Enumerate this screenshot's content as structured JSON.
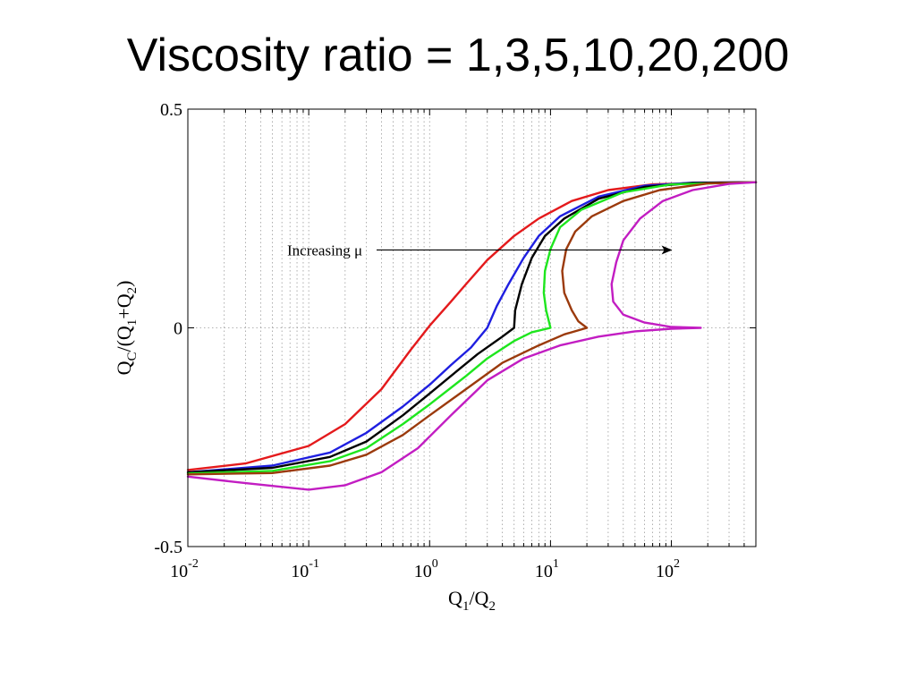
{
  "title": "Viscosity ratio = 1,3,5,10,20,200",
  "chart_data": {
    "type": "line",
    "xscale": "log",
    "xlim": [
      0.01,
      500
    ],
    "ylim": [
      -0.5,
      0.5
    ],
    "grid": {
      "x_minor_dotted": true,
      "y_dotted": true
    },
    "y_ticks": [
      {
        "value": 0.5,
        "label": "0.5"
      },
      {
        "value": 0,
        "label": "0"
      },
      {
        "value": -0.5,
        "label": "-0.5"
      }
    ],
    "x_ticks": [
      {
        "value": 0.01,
        "base": "10",
        "exp": "-2"
      },
      {
        "value": 0.1,
        "base": "10",
        "exp": "-1"
      },
      {
        "value": 1,
        "base": "10",
        "exp": "0"
      },
      {
        "value": 10,
        "base": "10",
        "exp": "1"
      },
      {
        "value": 100,
        "base": "10",
        "exp": "2"
      }
    ],
    "xlabel": {
      "main1": "Q",
      "sub1": "1",
      "main2": "/Q",
      "sub2": "2"
    },
    "ylabel": {
      "p1": "Q",
      "s1": "C",
      "p2": "/(Q",
      "s2": "1",
      "p3": "+Q",
      "s3": "2",
      "p4": ")"
    },
    "annotation": {
      "text": "Increasing μ",
      "y": 0.178,
      "x_end": 100
    },
    "series": [
      {
        "color": "#e41a1c",
        "points": [
          [
            0.01,
            -0.325
          ],
          [
            0.03,
            -0.31
          ],
          [
            0.1,
            -0.27
          ],
          [
            0.2,
            -0.22
          ],
          [
            0.4,
            -0.14
          ],
          [
            0.7,
            -0.05
          ],
          [
            1,
            0.005
          ],
          [
            1.5,
            0.06
          ],
          [
            2,
            0.1
          ],
          [
            3,
            0.155
          ],
          [
            5,
            0.21
          ],
          [
            8,
            0.25
          ],
          [
            15,
            0.29
          ],
          [
            30,
            0.315
          ],
          [
            70,
            0.328
          ],
          [
            200,
            0.332
          ],
          [
            500,
            0.333
          ]
        ]
      },
      {
        "color": "#1f1fe0",
        "points": [
          [
            0.01,
            -0.33
          ],
          [
            0.05,
            -0.315
          ],
          [
            0.15,
            -0.285
          ],
          [
            0.3,
            -0.24
          ],
          [
            0.6,
            -0.18
          ],
          [
            1,
            -0.13
          ],
          [
            1.5,
            -0.085
          ],
          [
            2.2,
            -0.045
          ],
          [
            3,
            0.0
          ],
          [
            3.6,
            0.05
          ],
          [
            4.5,
            0.1
          ],
          [
            6,
            0.16
          ],
          [
            8,
            0.21
          ],
          [
            12,
            0.255
          ],
          [
            25,
            0.3
          ],
          [
            60,
            0.325
          ],
          [
            150,
            0.332
          ],
          [
            500,
            0.333
          ]
        ]
      },
      {
        "color": "#000000",
        "points": [
          [
            0.01,
            -0.33
          ],
          [
            0.05,
            -0.32
          ],
          [
            0.15,
            -0.295
          ],
          [
            0.3,
            -0.26
          ],
          [
            0.6,
            -0.2
          ],
          [
            1,
            -0.15
          ],
          [
            1.5,
            -0.11
          ],
          [
            2.5,
            -0.06
          ],
          [
            4,
            -0.02
          ],
          [
            5,
            0.0
          ],
          [
            5.1,
            0.04
          ],
          [
            5.8,
            0.1
          ],
          [
            7,
            0.16
          ],
          [
            9,
            0.21
          ],
          [
            13,
            0.25
          ],
          [
            25,
            0.295
          ],
          [
            60,
            0.322
          ],
          [
            150,
            0.331
          ],
          [
            500,
            0.333
          ]
        ]
      },
      {
        "color": "#1ee61e",
        "points": [
          [
            0.01,
            -0.333
          ],
          [
            0.05,
            -0.327
          ],
          [
            0.15,
            -0.305
          ],
          [
            0.3,
            -0.275
          ],
          [
            0.6,
            -0.22
          ],
          [
            1,
            -0.175
          ],
          [
            2,
            -0.11
          ],
          [
            3,
            -0.07
          ],
          [
            5,
            -0.03
          ],
          [
            7,
            -0.01
          ],
          [
            10,
            0.0
          ],
          [
            9.2,
            0.04
          ],
          [
            8.8,
            0.08
          ],
          [
            9,
            0.13
          ],
          [
            10,
            0.18
          ],
          [
            12,
            0.23
          ],
          [
            18,
            0.27
          ],
          [
            40,
            0.31
          ],
          [
            100,
            0.328
          ],
          [
            500,
            0.333
          ]
        ]
      },
      {
        "color": "#9b3a0c",
        "points": [
          [
            0.01,
            -0.335
          ],
          [
            0.05,
            -0.332
          ],
          [
            0.15,
            -0.315
          ],
          [
            0.3,
            -0.29
          ],
          [
            0.6,
            -0.245
          ],
          [
            1,
            -0.2
          ],
          [
            2,
            -0.14
          ],
          [
            4,
            -0.08
          ],
          [
            8,
            -0.04
          ],
          [
            13,
            -0.015
          ],
          [
            20,
            0.0
          ],
          [
            17,
            0.015
          ],
          [
            15,
            0.04
          ],
          [
            13,
            0.08
          ],
          [
            12.5,
            0.13
          ],
          [
            13.5,
            0.18
          ],
          [
            16,
            0.22
          ],
          [
            22,
            0.255
          ],
          [
            40,
            0.29
          ],
          [
            80,
            0.315
          ],
          [
            200,
            0.33
          ],
          [
            500,
            0.333
          ]
        ]
      },
      {
        "color": "#c21dc2",
        "points": [
          [
            0.01,
            -0.34
          ],
          [
            0.03,
            -0.355
          ],
          [
            0.1,
            -0.37
          ],
          [
            0.2,
            -0.36
          ],
          [
            0.4,
            -0.33
          ],
          [
            0.8,
            -0.275
          ],
          [
            1.5,
            -0.2
          ],
          [
            3,
            -0.12
          ],
          [
            6,
            -0.07
          ],
          [
            12,
            -0.04
          ],
          [
            25,
            -0.02
          ],
          [
            50,
            -0.008
          ],
          [
            100,
            -0.002
          ],
          [
            175,
            0.0
          ],
          [
            100,
            0.002
          ],
          [
            60,
            0.012
          ],
          [
            40,
            0.03
          ],
          [
            33,
            0.06
          ],
          [
            32,
            0.1
          ],
          [
            35,
            0.15
          ],
          [
            40,
            0.2
          ],
          [
            55,
            0.25
          ],
          [
            85,
            0.29
          ],
          [
            150,
            0.315
          ],
          [
            300,
            0.329
          ],
          [
            500,
            0.333
          ]
        ]
      }
    ]
  }
}
